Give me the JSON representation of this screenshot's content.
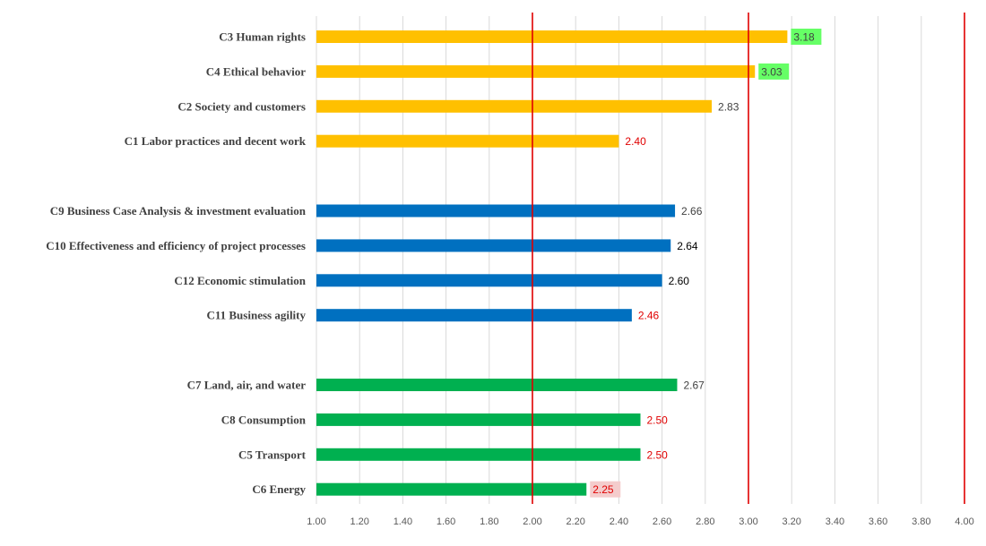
{
  "chart_data": {
    "type": "bar",
    "orientation": "horizontal",
    "title": "",
    "xlabel": "",
    "ylabel": "",
    "xlim": [
      1.0,
      4.0
    ],
    "x_ticks": [
      "1.00",
      "1.20",
      "1.40",
      "1.60",
      "1.80",
      "2.00",
      "2.20",
      "2.40",
      "2.60",
      "2.80",
      "3.00",
      "3.20",
      "3.40",
      "3.60",
      "3.80",
      "4.00"
    ],
    "grid": "vertical",
    "reference_lines": [
      2.0,
      3.0,
      4.0
    ],
    "reference_line_color": "#e00000",
    "categories": [
      {
        "label": "C3 Human rights",
        "value": 3.18,
        "value_label": "3.18",
        "color": "#ffc000",
        "label_color": "#404040",
        "label_highlight": "#66ff66"
      },
      {
        "label": "C4 Ethical behavior",
        "value": 3.03,
        "value_label": "3.03",
        "color": "#ffc000",
        "label_color": "#404040",
        "label_highlight": "#66ff66"
      },
      {
        "label": "C2 Society and customers",
        "value": 2.83,
        "value_label": "2.83",
        "color": "#ffc000",
        "label_color": "#404040",
        "label_highlight": ""
      },
      {
        "label": "C1 Labor practices and decent work",
        "value": 2.4,
        "value_label": "2.40",
        "color": "#ffc000",
        "label_color": "#e00000",
        "label_highlight": ""
      },
      {
        "label": "C9 Business Case Analysis & investment evaluation",
        "value": 2.66,
        "value_label": "2.66",
        "color": "#0070c0",
        "label_color": "#404040",
        "label_highlight": ""
      },
      {
        "label": "C10 Effectiveness and efficiency of project processes",
        "value": 2.64,
        "value_label": "2.64",
        "color": "#0070c0",
        "label_color": "#000000",
        "label_highlight": ""
      },
      {
        "label": "C12 Economic stimulation",
        "value": 2.6,
        "value_label": "2.60",
        "color": "#0070c0",
        "label_color": "#000000",
        "label_highlight": ""
      },
      {
        "label": "C11 Business agility",
        "value": 2.46,
        "value_label": "2.46",
        "color": "#0070c0",
        "label_color": "#e00000",
        "label_highlight": ""
      },
      {
        "label": "C7 Land, air, and water",
        "value": 2.67,
        "value_label": "2.67",
        "color": "#00b050",
        "label_color": "#404040",
        "label_highlight": ""
      },
      {
        "label": "C8 Consumption",
        "value": 2.5,
        "value_label": "2.50",
        "color": "#00b050",
        "label_color": "#e00000",
        "label_highlight": ""
      },
      {
        "label": "C5 Transport",
        "value": 2.5,
        "value_label": "2.50",
        "color": "#00b050",
        "label_color": "#e00000",
        "label_highlight": ""
      },
      {
        "label": "C6 Energy",
        "value": 2.25,
        "value_label": "2.25",
        "color": "#00b050",
        "label_color": "#e00000",
        "label_highlight": "#f4cccc"
      }
    ]
  }
}
